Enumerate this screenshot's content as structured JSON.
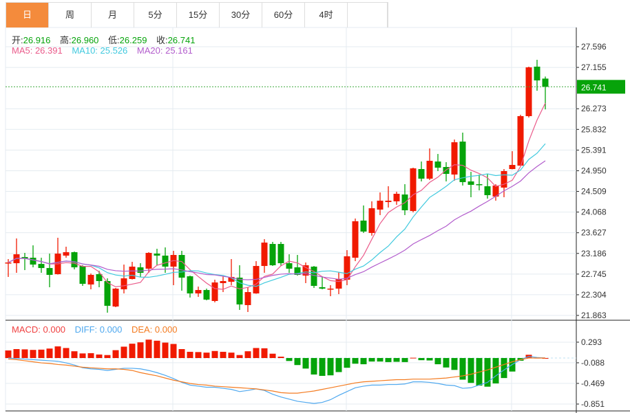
{
  "tabs": [
    "日",
    "周",
    "月",
    "5分",
    "15分",
    "30分",
    "60分",
    "4时"
  ],
  "active_tab": "日",
  "ohlc_labels": {
    "open": "开:",
    "high": "高:",
    "low": "低:",
    "close": "收:"
  },
  "ohlc_values": {
    "open": "26.916",
    "high": "26.960",
    "low": "26.259",
    "close": "26.741"
  },
  "ma_legend": {
    "ma5": "MA5: 26.391",
    "ma10": "MA10: 25.526",
    "ma20": "MA20: 25.161"
  },
  "macd_legend": {
    "macd": "MACD: 0.000",
    "diff": "DIFF: 0.000",
    "dea": "DEA: 0.000"
  },
  "current_price_label": "26.741",
  "colors": {
    "up": "#f01a00",
    "down": "#05a30a",
    "ma5": "#ea5a8a",
    "ma10": "#3fc9de",
    "ma20": "#b25ccc",
    "diff": "#4ea8ef",
    "dea": "#f47b20",
    "accent": "#f48b3c"
  },
  "chart_data": [
    {
      "type": "candlestick",
      "title": "",
      "y_axis_ticks": [
        "27.596",
        "27.155",
        "26.273",
        "25.832",
        "25.391",
        "24.950",
        "24.509",
        "24.068",
        "23.627",
        "23.186",
        "22.745",
        "22.304",
        "21.863"
      ],
      "ylim": [
        21.863,
        27.596
      ],
      "current_price": 26.741,
      "ohlc": [
        [
          22.977,
          23.065,
          22.684,
          22.992
        ],
        [
          22.977,
          23.505,
          22.772,
          23.168
        ],
        [
          23.109,
          23.197,
          22.83,
          23.08
        ],
        [
          23.094,
          23.358,
          22.889,
          22.948
        ],
        [
          22.962,
          23.094,
          22.772,
          22.874
        ],
        [
          22.874,
          23.182,
          22.464,
          22.728
        ],
        [
          22.743,
          23.52,
          22.735,
          23.182
        ],
        [
          23.139,
          23.329,
          23.094,
          23.212
        ],
        [
          23.212,
          23.226,
          22.845,
          22.889
        ],
        [
          22.918,
          22.933,
          22.493,
          22.537
        ],
        [
          22.523,
          22.757,
          22.42,
          22.728
        ],
        [
          22.743,
          22.816,
          22.464,
          22.596
        ],
        [
          22.596,
          22.654,
          21.921,
          22.068
        ],
        [
          22.053,
          22.449,
          22.039,
          22.435
        ],
        [
          22.42,
          22.948,
          22.332,
          22.654
        ],
        [
          22.64,
          23.006,
          22.63,
          22.904
        ],
        [
          22.889,
          22.977,
          22.684,
          22.772
        ],
        [
          22.86,
          23.212,
          22.772,
          23.197
        ],
        [
          23.182,
          23.285,
          22.933,
          23.139
        ],
        [
          23.139,
          23.314,
          22.772,
          22.904
        ],
        [
          22.904,
          23.241,
          22.508,
          23.153
        ],
        [
          23.153,
          23.241,
          22.391,
          22.669
        ],
        [
          22.698,
          22.713,
          22.244,
          22.332
        ],
        [
          22.332,
          22.478,
          22.259,
          22.405
        ],
        [
          22.405,
          22.435,
          22.185,
          22.2
        ],
        [
          22.171,
          22.625,
          22.141,
          22.566
        ],
        [
          22.552,
          22.698,
          22.361,
          22.596
        ],
        [
          22.581,
          23.065,
          22.508,
          22.684
        ],
        [
          22.669,
          22.933,
          21.98,
          22.097
        ],
        [
          22.083,
          22.464,
          21.936,
          22.361
        ],
        [
          22.332,
          23.021,
          22.325,
          22.918
        ],
        [
          22.918,
          23.49,
          22.772,
          23.417
        ],
        [
          23.388,
          23.432,
          22.918,
          22.933
        ],
        [
          23.388,
          23.432,
          22.918,
          22.977
        ],
        [
          22.977,
          23.168,
          22.772,
          22.86
        ],
        [
          22.889,
          23.153,
          22.713,
          22.728
        ],
        [
          22.713,
          22.992,
          22.552,
          22.933
        ],
        [
          22.904,
          22.918,
          22.449,
          22.493
        ],
        [
          22.464,
          22.698,
          22.42,
          22.435
        ],
        [
          22.425,
          22.508,
          22.273,
          22.435
        ],
        [
          22.435,
          22.787,
          22.317,
          22.64
        ],
        [
          22.625,
          23.256,
          22.508,
          23.124
        ],
        [
          23.094,
          23.93,
          23.021,
          23.872
        ],
        [
          23.886,
          24.209,
          23.622,
          23.652
        ],
        [
          23.622,
          24.297,
          23.564,
          24.15
        ],
        [
          24.121,
          24.487,
          24.003,
          24.311
        ],
        [
          24.282,
          24.619,
          24.165,
          24.311
        ],
        [
          24.297,
          24.502,
          24.223,
          24.458
        ],
        [
          24.443,
          24.663,
          24.003,
          24.106
        ],
        [
          24.091,
          25.015,
          24.062,
          25.001
        ],
        [
          24.986,
          25.147,
          24.722,
          24.781
        ],
        [
          24.781,
          25.426,
          24.751,
          25.162
        ],
        [
          25.147,
          25.308,
          24.942,
          25.015
        ],
        [
          25.03,
          25.133,
          24.722,
          24.883
        ],
        [
          24.869,
          25.616,
          24.737,
          25.558
        ],
        [
          25.572,
          25.763,
          24.634,
          24.707
        ],
        [
          24.722,
          24.927,
          24.385,
          24.649
        ],
        [
          24.663,
          24.869,
          24.531,
          24.655
        ],
        [
          24.619,
          24.883,
          24.355,
          24.429
        ],
        [
          24.399,
          24.663,
          24.311,
          24.634
        ],
        [
          24.59,
          24.986,
          24.385,
          24.942
        ],
        [
          24.986,
          25.367,
          24.98,
          25.074
        ],
        [
          25.059,
          26.144,
          25.05,
          26.115
        ],
        [
          26.115,
          27.171,
          26.086,
          27.156
        ],
        [
          27.171,
          27.317,
          26.657,
          26.877
        ],
        [
          26.916,
          26.96,
          26.259,
          26.741
        ]
      ],
      "moving_averages": [
        "MA5",
        "MA10",
        "MA20"
      ]
    },
    {
      "type": "bar+line",
      "title": "MACD",
      "y_axis_ticks": [
        "0.293",
        "-0.088",
        "-0.469",
        "-0.851"
      ],
      "ylim": [
        -0.95,
        0.35
      ],
      "macd": [
        0.14,
        0.165,
        0.16,
        0.15,
        0.155,
        0.175,
        0.215,
        0.185,
        0.125,
        0.085,
        0.09,
        0.065,
        0.055,
        0.145,
        0.21,
        0.265,
        0.29,
        0.34,
        0.32,
        0.285,
        0.26,
        0.165,
        0.115,
        0.11,
        0.1,
        0.13,
        0.115,
        0.1,
        0.055,
        0.125,
        0.185,
        0.18,
        0.08,
        0.025,
        -0.055,
        -0.13,
        -0.195,
        -0.305,
        -0.33,
        -0.32,
        -0.26,
        -0.18,
        -0.105,
        -0.115,
        -0.065,
        -0.065,
        -0.075,
        -0.07,
        -0.075,
        0.005,
        -0.04,
        -0.045,
        -0.115,
        -0.175,
        -0.22,
        -0.4,
        -0.46,
        -0.51,
        -0.53,
        -0.47,
        -0.37,
        -0.25,
        -0.05,
        0.06,
        0.005,
        0.0
      ],
      "diff": [
        0.0,
        -0.01,
        -0.02,
        -0.03,
        -0.04,
        -0.05,
        -0.06,
        -0.09,
        -0.13,
        -0.18,
        -0.2,
        -0.21,
        -0.23,
        -0.21,
        -0.19,
        -0.19,
        -0.2,
        -0.23,
        -0.27,
        -0.32,
        -0.38,
        -0.45,
        -0.5,
        -0.52,
        -0.54,
        -0.54,
        -0.56,
        -0.58,
        -0.62,
        -0.6,
        -0.57,
        -0.6,
        -0.67,
        -0.72,
        -0.76,
        -0.8,
        -0.82,
        -0.84,
        -0.82,
        -0.77,
        -0.69,
        -0.62,
        -0.55,
        -0.52,
        -0.5,
        -0.5,
        -0.49,
        -0.49,
        -0.48,
        -0.44,
        -0.44,
        -0.45,
        -0.47,
        -0.5,
        -0.51,
        -0.56,
        -0.55,
        -0.5,
        -0.45,
        -0.33,
        -0.22,
        -0.12,
        -0.03,
        0.03,
        0.01,
        0.0
      ],
      "dea": [
        -0.02,
        -0.03,
        -0.05,
        -0.07,
        -0.09,
        -0.1,
        -0.12,
        -0.13,
        -0.15,
        -0.17,
        -0.18,
        -0.19,
        -0.2,
        -0.2,
        -0.21,
        -0.23,
        -0.27,
        -0.3,
        -0.33,
        -0.37,
        -0.41,
        -0.44,
        -0.47,
        -0.49,
        -0.5,
        -0.52,
        -0.53,
        -0.54,
        -0.55,
        -0.56,
        -0.57,
        -0.59,
        -0.61,
        -0.64,
        -0.65,
        -0.65,
        -0.63,
        -0.61,
        -0.58,
        -0.55,
        -0.52,
        -0.49,
        -0.46,
        -0.44,
        -0.43,
        -0.42,
        -0.41,
        -0.4,
        -0.4,
        -0.39,
        -0.39,
        -0.39,
        -0.38,
        -0.37,
        -0.35,
        -0.33,
        -0.3,
        -0.26,
        -0.22,
        -0.17,
        -0.12,
        -0.07,
        -0.03,
        0.0,
        0.0,
        0.0
      ]
    }
  ]
}
